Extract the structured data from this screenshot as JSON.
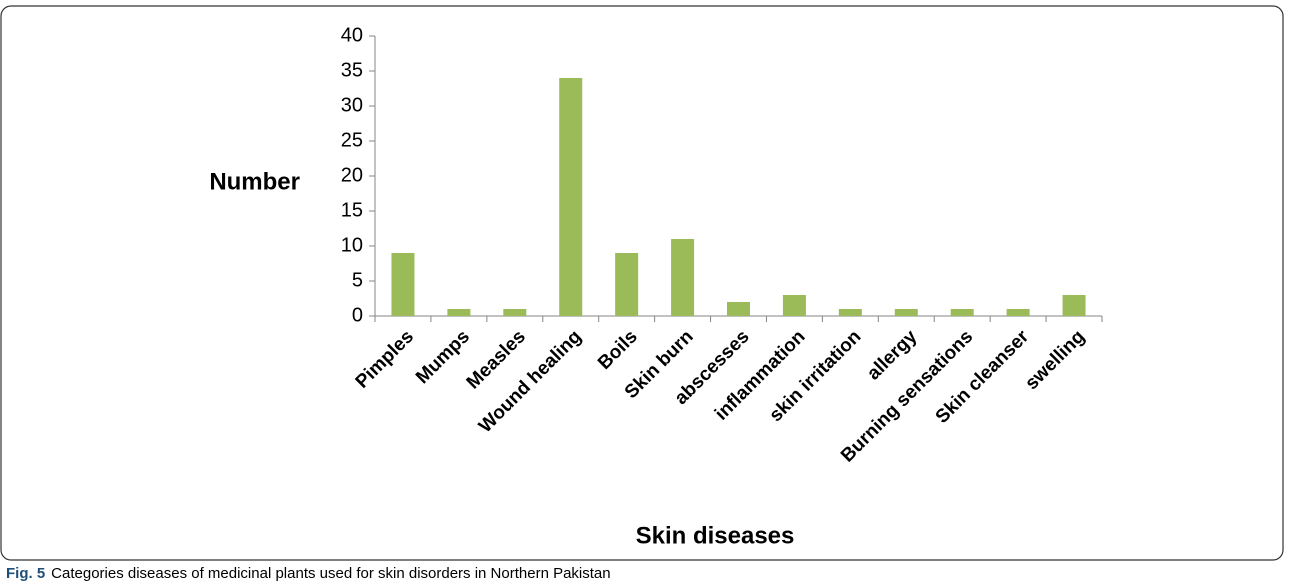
{
  "chart_data": {
    "type": "bar",
    "y_label": "Number",
    "x_label": "Skin diseases",
    "caption_label": "Fig. 5",
    "caption": "Categories diseases of medicinal plants used for skin disorders in Northern Pakistan",
    "categories": [
      "Pimples",
      "Mumps",
      "Measles",
      "Wound healing",
      "Boils",
      "Skin burn",
      "abscesses",
      "inflammation",
      "skin irritation",
      "allergy",
      "Burning sensations",
      "Skin cleanser",
      "swelling"
    ],
    "values": [
      9,
      1,
      1,
      34,
      9,
      11,
      2,
      3,
      1,
      1,
      1,
      1,
      3
    ],
    "color": "#9bbb59",
    "ylim": [
      0,
      40
    ],
    "yticks": [
      0,
      5,
      10,
      15,
      20,
      25,
      30,
      35,
      40
    ],
    "grid": false
  }
}
